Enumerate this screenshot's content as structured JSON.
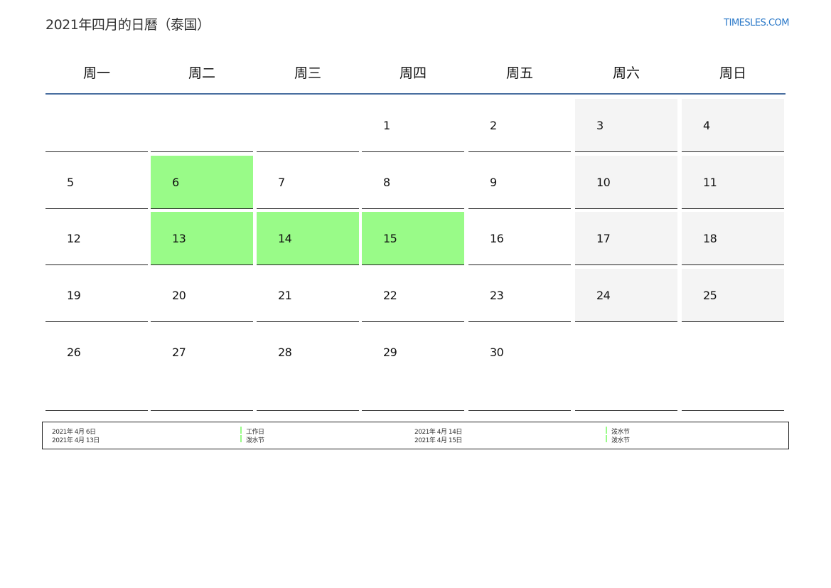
{
  "header": {
    "title": "2021年四月的日曆（泰国）",
    "logo": "TIMESLES.COM"
  },
  "weekdays": [
    "周一",
    "周二",
    "周三",
    "周四",
    "周五",
    "周六",
    "周日"
  ],
  "colors": {
    "holiday": "#99fb88",
    "weekend": "#f4f4f4",
    "header_line": "#4a6fa0",
    "logo": "#2a78c8"
  },
  "weeks": [
    [
      null,
      null,
      null,
      {
        "day": "1"
      },
      {
        "day": "2"
      },
      {
        "day": "3",
        "type": "weekend"
      },
      {
        "day": "4",
        "type": "weekend"
      }
    ],
    [
      {
        "day": "5"
      },
      {
        "day": "6",
        "type": "holiday"
      },
      {
        "day": "7"
      },
      {
        "day": "8"
      },
      {
        "day": "9"
      },
      {
        "day": "10",
        "type": "weekend"
      },
      {
        "day": "11",
        "type": "weekend"
      }
    ],
    [
      {
        "day": "12"
      },
      {
        "day": "13",
        "type": "holiday"
      },
      {
        "day": "14",
        "type": "holiday"
      },
      {
        "day": "15",
        "type": "holiday"
      },
      {
        "day": "16"
      },
      {
        "day": "17",
        "type": "weekend"
      },
      {
        "day": "18",
        "type": "weekend"
      }
    ],
    [
      {
        "day": "19"
      },
      {
        "day": "20"
      },
      {
        "day": "21"
      },
      {
        "day": "22"
      },
      {
        "day": "23"
      },
      {
        "day": "24",
        "type": "weekend"
      },
      {
        "day": "25",
        "type": "weekend"
      }
    ],
    [
      {
        "day": "26"
      },
      {
        "day": "27"
      },
      {
        "day": "28"
      },
      {
        "day": "29"
      },
      {
        "day": "30"
      },
      null,
      null
    ]
  ],
  "holidays": [
    {
      "date": "2021年 4月 6日",
      "name": "工作日"
    },
    {
      "date": "2021年 4月 13日",
      "name": "泼水节"
    },
    {
      "date": "2021年 4月 14日",
      "name": "泼水节"
    },
    {
      "date": "2021年 4月 15日",
      "name": "泼水节"
    }
  ]
}
